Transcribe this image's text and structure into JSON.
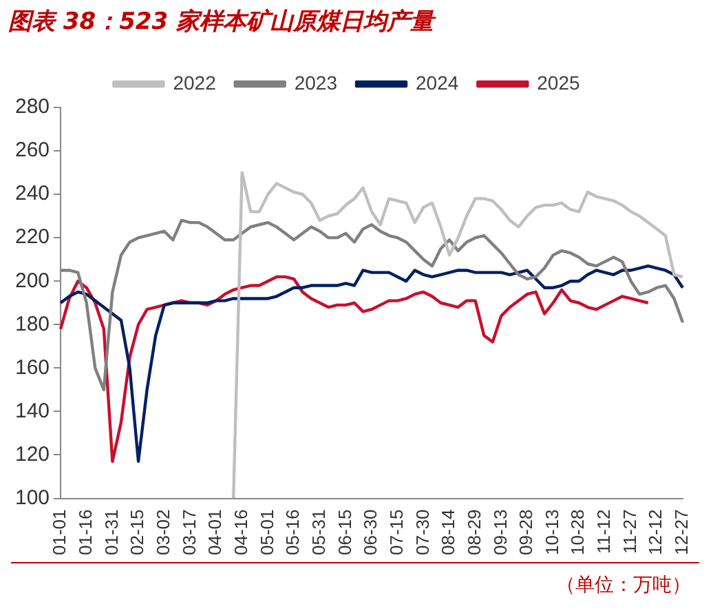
{
  "chart_data": {
    "type": "line",
    "title": "图表 38：523 家样本矿山原煤日均产量",
    "categories": [
      "01-01",
      null,
      null,
      "01-16",
      null,
      null,
      "01-31",
      null,
      null,
      "02-15",
      null,
      null,
      "03-02",
      null,
      null,
      "03-17",
      null,
      null,
      "04-01",
      null,
      null,
      "04-16",
      null,
      null,
      "05-01",
      null,
      null,
      "05-16",
      null,
      null,
      "05-31",
      null,
      null,
      "06-15",
      null,
      null,
      "06-30",
      null,
      null,
      "07-15",
      null,
      null,
      "07-30",
      null,
      null,
      "08-14",
      null,
      null,
      "08-29",
      null,
      null,
      "09-13",
      null,
      null,
      "09-28",
      null,
      null,
      "10-13",
      null,
      null,
      "10-28",
      null,
      null,
      "11-12",
      null,
      null,
      "11-27",
      null,
      null,
      "12-12",
      null,
      null,
      "12-27"
    ],
    "series": [
      {
        "name": "2022",
        "color": "#bfbfbf",
        "values": [
          null,
          null,
          null,
          null,
          null,
          null,
          null,
          null,
          null,
          null,
          null,
          null,
          null,
          null,
          null,
          null,
          null,
          null,
          null,
          null,
          100,
          250,
          232,
          232,
          240,
          245,
          243,
          241,
          240,
          236,
          228,
          230,
          231,
          235,
          238,
          243,
          232,
          226,
          238,
          237,
          236,
          227,
          234,
          236,
          225,
          212,
          220,
          230,
          238,
          238,
          237,
          233,
          228,
          225,
          230,
          234,
          235,
          235,
          236,
          233,
          232,
          241,
          239,
          238,
          237,
          235,
          232,
          230,
          227,
          224,
          221,
          203,
          202
        ]
      },
      {
        "name": "2023",
        "color": "#808080",
        "values": [
          205,
          205,
          204,
          190,
          160,
          150,
          195,
          212,
          218,
          220,
          221,
          222,
          223,
          219,
          228,
          227,
          227,
          225,
          222,
          219,
          219,
          222,
          225,
          226,
          227,
          225,
          222,
          219,
          222,
          225,
          223,
          220,
          220,
          222,
          218,
          224,
          226,
          223,
          221,
          220,
          218,
          214,
          210,
          207,
          215,
          219,
          214,
          218,
          220,
          221,
          217,
          213,
          208,
          203,
          201,
          202,
          206,
          212,
          214,
          213,
          211,
          208,
          207,
          209,
          211,
          209,
          200,
          194,
          195,
          197,
          198,
          192,
          181
        ]
      },
      {
        "name": "2024",
        "color": "#002060",
        "values": [
          190,
          193,
          195,
          194,
          191,
          188,
          185,
          182,
          160,
          117,
          150,
          175,
          189,
          190,
          190,
          190,
          190,
          190,
          191,
          191,
          192,
          192,
          192,
          192,
          192,
          193,
          195,
          197,
          197,
          198,
          198,
          198,
          198,
          199,
          198,
          205,
          204,
          204,
          204,
          202,
          200,
          205,
          203,
          202,
          203,
          204,
          205,
          205,
          204,
          204,
          204,
          204,
          203,
          204,
          205,
          201,
          197,
          197,
          198,
          200,
          200,
          203,
          205,
          204,
          203,
          205,
          205,
          206,
          207,
          206,
          205,
          203,
          197
        ]
      },
      {
        "name": "2025",
        "color": "#c8102e",
        "values": [
          178,
          192,
          200,
          197,
          190,
          178,
          117,
          135,
          165,
          180,
          187,
          188,
          189,
          190,
          191,
          190,
          190,
          189,
          191,
          194,
          196,
          197,
          198,
          198,
          200,
          202,
          202,
          201,
          195,
          192,
          190,
          188,
          189,
          189,
          190,
          186,
          187,
          189,
          191,
          191,
          192,
          194,
          195,
          193,
          190,
          189,
          188,
          191,
          191,
          175,
          172,
          184,
          188,
          191,
          194,
          195,
          185,
          190,
          196,
          191,
          190,
          188,
          187,
          189,
          191,
          193,
          192,
          191,
          190,
          null,
          null,
          null,
          null
        ]
      }
    ],
    "ylim": [
      100,
      280
    ],
    "yticks": [
      100,
      120,
      140,
      160,
      180,
      200,
      220,
      240,
      260,
      280
    ],
    "legend": "top",
    "annotations": [
      "（单位：万吨）"
    ]
  }
}
